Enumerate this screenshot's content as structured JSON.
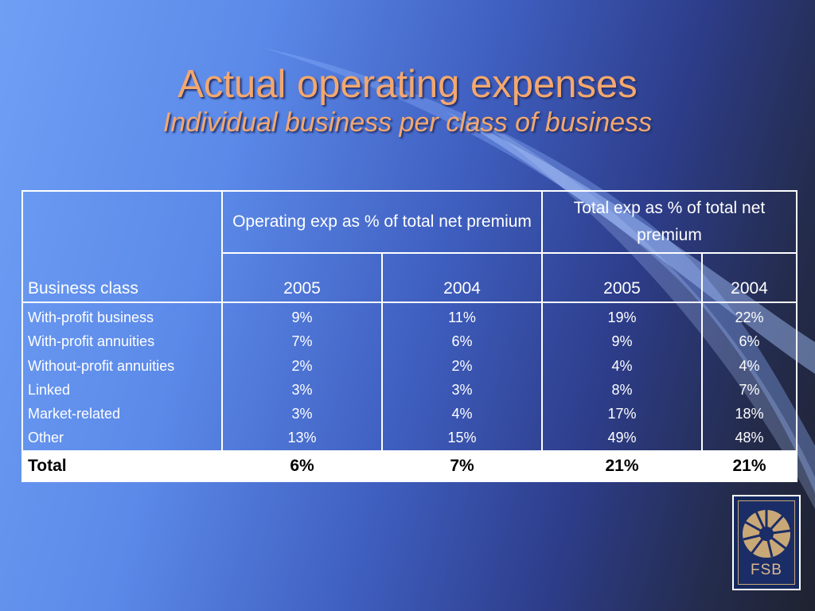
{
  "title": "Actual operating expenses",
  "subtitle": "Individual business per class of business",
  "table": {
    "business_class_header": "Business class",
    "group_headers": [
      "Operating exp as % of total net premium",
      "Total exp as % of total net premium"
    ],
    "years": [
      "2005",
      "2004",
      "2005",
      "2004"
    ],
    "rows": [
      {
        "label": "With-profit business",
        "values": [
          "9%",
          "11%",
          "19%",
          "22%"
        ]
      },
      {
        "label": "With-profit annuities",
        "values": [
          "7%",
          "6%",
          "9%",
          "6%"
        ]
      },
      {
        "label": "Without-profit annuities",
        "values": [
          "2%",
          "2%",
          "4%",
          "4%"
        ]
      },
      {
        "label": "Linked",
        "values": [
          "3%",
          "3%",
          "8%",
          "7%"
        ]
      },
      {
        "label": "Market-related",
        "values": [
          "3%",
          "4%",
          "17%",
          "18%"
        ]
      },
      {
        "label": "Other",
        "values": [
          "13%",
          "15%",
          "49%",
          "48%"
        ]
      }
    ],
    "total": {
      "label": "Total",
      "values": [
        "6%",
        "7%",
        "21%",
        "21%"
      ]
    }
  },
  "logo": {
    "text": "FSB",
    "icon": "fsb-logo-icon"
  },
  "colors": {
    "title": "#f4a86e",
    "background_start": "#6f9ff5",
    "background_end": "#1f2230",
    "logo_gold": "#c9a878"
  }
}
